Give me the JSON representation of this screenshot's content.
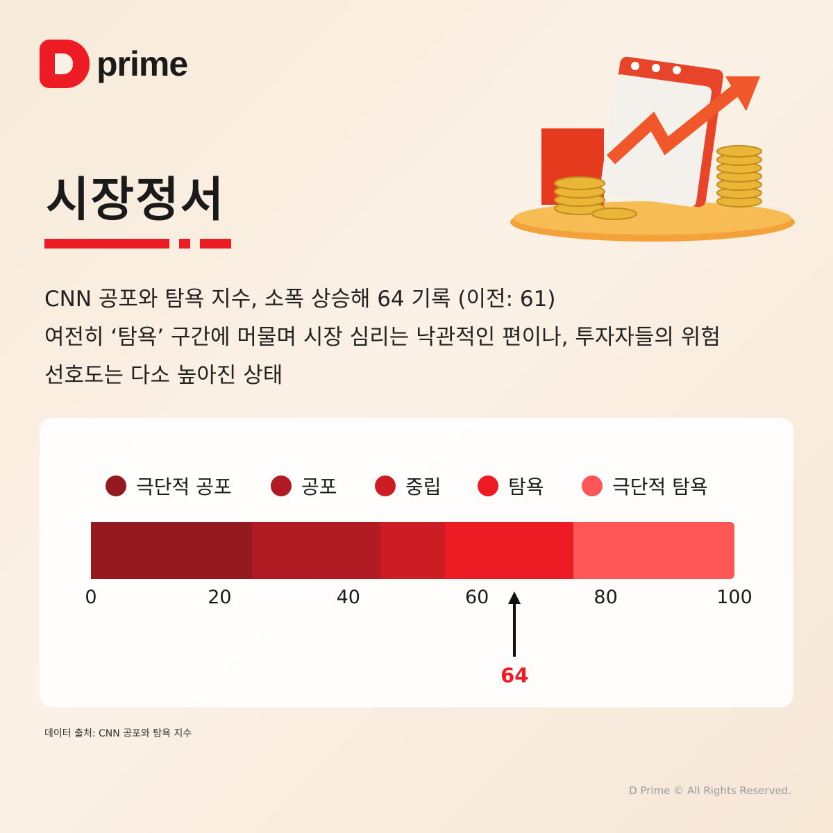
{
  "brand": {
    "name": "prime"
  },
  "title": "시장정서",
  "description": [
    "CNN 공포와 탐욕 지수, 소폭 상승해 64 기록 (이전: 61)",
    "여전히 ‘탐욕’ 구간에 머물며 시장 심리는 낙관적인 편이나, 투자자들의 위험",
    "선호도는 다소 높아진 상태"
  ],
  "chart_data": {
    "type": "bar",
    "orientation": "horizontal-gauge",
    "xlim": [
      0,
      100
    ],
    "ticks": [
      0,
      20,
      40,
      60,
      80,
      100
    ],
    "segments": [
      {
        "name": "극단적 공포",
        "from": 0,
        "to": 25,
        "color": "#951a1f"
      },
      {
        "name": "공포",
        "from": 25,
        "to": 45,
        "color": "#b01a22"
      },
      {
        "name": "중립",
        "from": 45,
        "to": 55,
        "color": "#cc1c24"
      },
      {
        "name": "탐욕",
        "from": 55,
        "to": 75,
        "color": "#ed1c24"
      },
      {
        "name": "극단적 탐욕",
        "from": 75,
        "to": 100,
        "color": "#ff5757"
      }
    ],
    "marker": {
      "value": 64,
      "label": "64"
    },
    "legend_placement": "top"
  },
  "source": "데이터 출처: CNN 공포와 탐욕 지수",
  "copyright": "D Prime © All Rights Reserved.",
  "colors": {
    "accent": "#ed1c24"
  }
}
